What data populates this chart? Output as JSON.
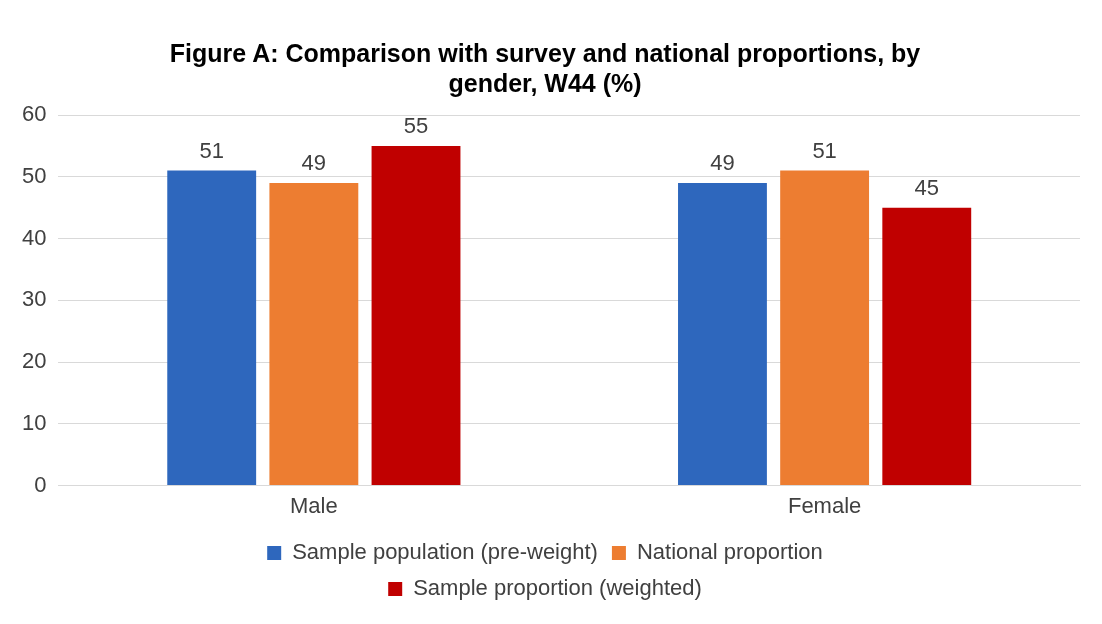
{
  "chart_data": {
    "type": "bar",
    "title": "Figure A: Comparison with survey and national proportions, by gender, W44 (%)",
    "categories": [
      "Male",
      "Female"
    ],
    "series": [
      {
        "name": "Sample population (pre-weight)",
        "color": "#2e67bd",
        "values": [
          51,
          49
        ]
      },
      {
        "name": "National proportion",
        "color": "#ed7d31",
        "values": [
          49,
          51
        ]
      },
      {
        "name": "Sample proportion (weighted)",
        "color": "#c00000",
        "values": [
          55,
          45
        ]
      }
    ],
    "ylim": [
      0,
      60
    ],
    "yticks": [
      0,
      10,
      20,
      30,
      40,
      50,
      60
    ],
    "grid": "y",
    "legend": "bottom",
    "data_labels": true
  }
}
